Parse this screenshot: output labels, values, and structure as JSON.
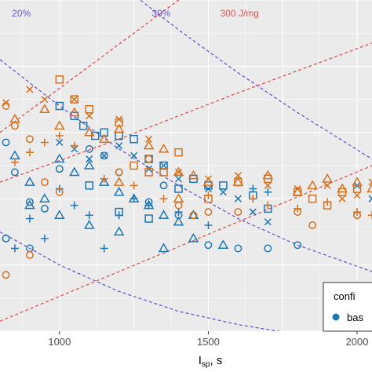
{
  "chart_data": {
    "type": "scatter",
    "title": "",
    "xlabel": "I",
    "xlabel_sub": "sp",
    "xlabel_suffix": ", s",
    "ylabel": "",
    "xlim": [
      800,
      2050
    ],
    "ylim": [
      0,
      10
    ],
    "x_ticks": [
      {
        "value": 1000,
        "label": "1000"
      },
      {
        "value": 1500,
        "label": "1500"
      },
      {
        "value": 2000,
        "label": "2000"
      }
    ],
    "grid": true,
    "background": "#ebebeb",
    "colors": {
      "blue": "#1f77b4",
      "orange": "#d6711f",
      "purple_line": "#6a5acd",
      "red_line": "#e05555"
    },
    "line_annotations": [
      {
        "text": "20%",
        "x": 840,
        "y": 9.6,
        "color": "#6a5acd"
      },
      {
        "text": "30%",
        "x": 1310,
        "y": 9.6,
        "color": "#6a5acd"
      },
      {
        "text": "300 J/mg",
        "x": 1540,
        "y": 9.6,
        "color": "#e05555"
      }
    ],
    "reference_lines": [
      {
        "name": "efficiency-20",
        "color": "#6a5acd",
        "points": [
          [
            800,
            8.2
          ],
          [
            1000,
            6.8
          ],
          [
            1200,
            5.5
          ],
          [
            1400,
            4.4
          ],
          [
            1600,
            3.4
          ],
          [
            1800,
            2.6
          ],
          [
            2050,
            1.8
          ]
        ]
      },
      {
        "name": "efficiency-30",
        "color": "#6a5acd",
        "points": [
          [
            1200,
            10.5
          ],
          [
            1400,
            9.1
          ],
          [
            1600,
            7.8
          ],
          [
            1800,
            6.6
          ],
          [
            2050,
            5.2
          ]
        ]
      },
      {
        "name": "efficiency-lower",
        "color": "#6a5acd",
        "points": [
          [
            800,
            3.0
          ],
          [
            1000,
            2.0
          ],
          [
            1200,
            1.2
          ],
          [
            1400,
            0.6
          ],
          [
            1600,
            0.2
          ],
          [
            1800,
            -0.1
          ]
        ]
      },
      {
        "name": "energy-300",
        "color": "#e05555",
        "points": [
          [
            800,
            6.0
          ],
          [
            1100,
            8.0
          ],
          [
            1400,
            10.0
          ],
          [
            1600,
            11.3
          ]
        ]
      },
      {
        "name": "energy-mid",
        "color": "#e05555",
        "points": [
          [
            800,
            4.5
          ],
          [
            1200,
            5.8
          ],
          [
            1600,
            7.2
          ],
          [
            2050,
            8.7
          ]
        ]
      },
      {
        "name": "energy-low",
        "color": "#e05555",
        "points": [
          [
            800,
            0.3
          ],
          [
            1200,
            1.8
          ],
          [
            1600,
            3.3
          ],
          [
            2050,
            5.0
          ]
        ]
      }
    ],
    "series": [
      {
        "color": "blue",
        "shape": "square",
        "points": [
          [
            1000,
            6.8
          ],
          [
            1050,
            6.5
          ],
          [
            1080,
            6.2
          ],
          [
            1120,
            5.9
          ],
          [
            1150,
            6.0
          ],
          [
            1200,
            5.9
          ],
          [
            1250,
            5.8
          ],
          [
            1300,
            5.2
          ],
          [
            1350,
            5.0
          ],
          [
            1400,
            4.3
          ],
          [
            1450,
            4.6
          ],
          [
            1500,
            4.4
          ],
          [
            1550,
            4.4
          ],
          [
            1100,
            4.4
          ],
          [
            1200,
            3.6
          ],
          [
            1300,
            3.4
          ],
          [
            1650,
            4.1
          ],
          [
            1700,
            3.7
          ]
        ]
      },
      {
        "color": "blue",
        "shape": "triangle",
        "points": [
          [
            850,
            5.3
          ],
          [
            900,
            4.5
          ],
          [
            950,
            4.0
          ],
          [
            1000,
            5.2
          ],
          [
            1050,
            4.8
          ],
          [
            1100,
            5.0
          ],
          [
            1150,
            4.5
          ],
          [
            1200,
            4.2
          ],
          [
            1250,
            4.0
          ],
          [
            1300,
            3.8
          ],
          [
            1350,
            3.5
          ],
          [
            1400,
            3.3
          ],
          [
            1450,
            3.5
          ],
          [
            1000,
            3.5
          ],
          [
            1100,
            3.2
          ],
          [
            1200,
            3.0
          ],
          [
            1350,
            2.5
          ],
          [
            1450,
            2.8
          ],
          [
            1550,
            2.6
          ],
          [
            900,
            3.8
          ]
        ]
      },
      {
        "color": "blue",
        "shape": "circle",
        "points": [
          [
            820,
            5.7
          ],
          [
            850,
            4.8
          ],
          [
            900,
            3.9
          ],
          [
            950,
            3.7
          ],
          [
            1000,
            4.9
          ],
          [
            1100,
            5.5
          ],
          [
            1150,
            5.3
          ],
          [
            1200,
            4.8
          ],
          [
            1300,
            3.9
          ],
          [
            1350,
            4.4
          ],
          [
            1400,
            3.5
          ],
          [
            1500,
            2.6
          ],
          [
            820,
            2.8
          ],
          [
            900,
            2.5
          ],
          [
            1600,
            2.5
          ],
          [
            1700,
            2.5
          ],
          [
            1800,
            2.6
          ],
          [
            2000,
            3.5
          ]
        ]
      },
      {
        "color": "blue",
        "shape": "cross",
        "points": [
          [
            1000,
            5.7
          ],
          [
            1050,
            5.5
          ],
          [
            1100,
            5.2
          ],
          [
            1150,
            5.3
          ],
          [
            1200,
            5.6
          ],
          [
            1250,
            5.3
          ],
          [
            1300,
            4.9
          ],
          [
            1350,
            5.0
          ],
          [
            1400,
            4.6
          ],
          [
            1500,
            4.3
          ],
          [
            1550,
            4.2
          ],
          [
            1600,
            4.0
          ],
          [
            1650,
            3.6
          ],
          [
            1700,
            3.3
          ],
          [
            2000,
            4.4
          ],
          [
            2050,
            4.0
          ]
        ]
      },
      {
        "color": "blue",
        "shape": "plus",
        "points": [
          [
            850,
            2.5
          ],
          [
            900,
            3.4
          ],
          [
            950,
            2.8
          ],
          [
            1000,
            4.3
          ],
          [
            1050,
            3.8
          ],
          [
            1100,
            3.5
          ],
          [
            1150,
            2.5
          ],
          [
            1200,
            3.5
          ],
          [
            1250,
            4.0
          ],
          [
            1300,
            3.8
          ],
          [
            1400,
            3.6
          ],
          [
            1500,
            3.2
          ],
          [
            1650,
            4.3
          ],
          [
            1700,
            4.2
          ]
        ]
      },
      {
        "color": "orange",
        "shape": "square",
        "points": [
          [
            1000,
            7.6
          ],
          [
            1050,
            7.0
          ],
          [
            1100,
            6.7
          ],
          [
            1200,
            6.3
          ],
          [
            1250,
            5.0
          ],
          [
            1300,
            4.8
          ],
          [
            1350,
            4.8
          ],
          [
            1400,
            5.4
          ],
          [
            1500,
            4.0
          ],
          [
            1600,
            4.5
          ],
          [
            1700,
            4.6
          ],
          [
            1800,
            4.2
          ],
          [
            1850,
            4.0
          ],
          [
            1900,
            3.8
          ],
          [
            2000,
            4.3
          ],
          [
            1950,
            4.2
          ]
        ]
      },
      {
        "color": "orange",
        "shape": "triangle",
        "points": [
          [
            850,
            6.4
          ],
          [
            950,
            6.7
          ],
          [
            1000,
            6.2
          ],
          [
            1050,
            6.6
          ],
          [
            1100,
            6.0
          ],
          [
            1150,
            5.8
          ],
          [
            1200,
            6.1
          ],
          [
            1300,
            5.6
          ],
          [
            1350,
            5.5
          ],
          [
            1400,
            4.8
          ],
          [
            1450,
            4.7
          ],
          [
            1500,
            4.5
          ],
          [
            1600,
            4.5
          ],
          [
            1700,
            4.7
          ],
          [
            1800,
            4.2
          ],
          [
            1850,
            4.4
          ],
          [
            1900,
            4.6
          ],
          [
            1950,
            4.3
          ],
          [
            2000,
            4.5
          ],
          [
            2050,
            4.3
          ],
          [
            1200,
            4.5
          ],
          [
            1400,
            4.0
          ]
        ]
      },
      {
        "color": "orange",
        "shape": "circle",
        "points": [
          [
            820,
            6.8
          ],
          [
            850,
            6.2
          ],
          [
            900,
            5.8
          ],
          [
            950,
            4.5
          ],
          [
            1000,
            4.2
          ],
          [
            1200,
            4.8
          ],
          [
            1300,
            5.2
          ],
          [
            1400,
            3.8
          ],
          [
            1450,
            3.5
          ],
          [
            1500,
            3.6
          ],
          [
            820,
            1.7
          ],
          [
            900,
            2.3
          ],
          [
            1600,
            3.6
          ],
          [
            1800,
            3.6
          ],
          [
            1850,
            3.2
          ],
          [
            2000,
            3.5
          ]
        ]
      },
      {
        "color": "orange",
        "shape": "cross",
        "points": [
          [
            820,
            6.9
          ],
          [
            900,
            7.3
          ],
          [
            950,
            7.0
          ],
          [
            1050,
            7.0
          ],
          [
            1100,
            6.5
          ],
          [
            1200,
            6.4
          ],
          [
            1300,
            5.8
          ],
          [
            1400,
            4.8
          ],
          [
            1500,
            4.6
          ],
          [
            1600,
            4.7
          ],
          [
            1700,
            4.4
          ],
          [
            1800,
            4.3
          ],
          [
            1900,
            4.4
          ],
          [
            2000,
            4.1
          ],
          [
            2050,
            4.5
          ],
          [
            1950,
            4.0
          ]
        ]
      },
      {
        "color": "orange",
        "shape": "plus",
        "points": [
          [
            850,
            5.1
          ],
          [
            900,
            5.4
          ],
          [
            950,
            5.7
          ],
          [
            1000,
            5.9
          ],
          [
            1050,
            5.6
          ],
          [
            1150,
            4.6
          ],
          [
            1250,
            4.4
          ],
          [
            1350,
            4.0
          ],
          [
            1500,
            4.1
          ],
          [
            1650,
            4.0
          ],
          [
            1700,
            3.8
          ],
          [
            1800,
            3.7
          ],
          [
            1900,
            3.9
          ],
          [
            2000,
            3.6
          ],
          [
            2050,
            3.5
          ]
        ]
      }
    ],
    "legend": {
      "placement": "bottom-right",
      "title": "confi",
      "entries": [
        {
          "label": "bas",
          "color": "blue",
          "shape": "circle"
        }
      ]
    }
  }
}
